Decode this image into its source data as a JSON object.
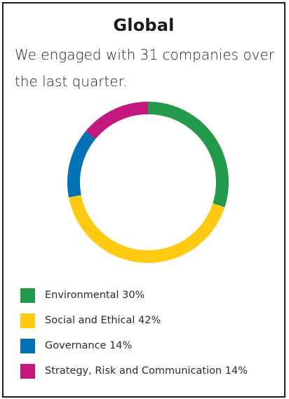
{
  "card": {
    "title": "Global",
    "subtitle": "We engaged with 31 companies over the last quarter."
  },
  "chart_data": {
    "type": "pie",
    "title": "Global",
    "subtitle": "We engaged with 31 companies over the last quarter.",
    "categories": [
      "Environmental",
      "Social and Ethical",
      "Governance",
      "Strategy, Risk and Communication"
    ],
    "values": [
      30,
      42,
      14,
      14
    ],
    "colors": [
      "#239A4B",
      "#FFCB12",
      "#0072B5",
      "#C4187E"
    ],
    "labels": [
      "Environmental 30%",
      "Social and Ethical 42%",
      "Governance 14%",
      "Strategy, Risk and Communication 14%"
    ],
    "legend_placement": "bottom",
    "donut": true
  }
}
